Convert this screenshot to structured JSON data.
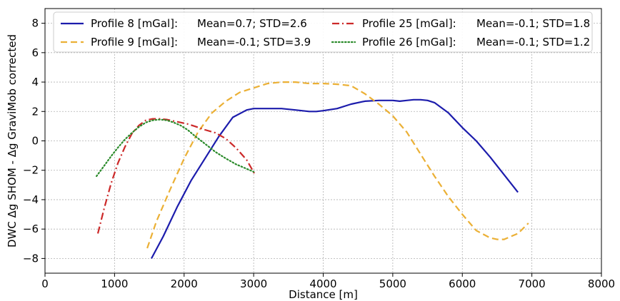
{
  "chart_data": {
    "type": "line",
    "xlabel": "Distance [m]",
    "ylabel": "DWC Δg SHOM - Δg GraviMob corrected",
    "xlim": [
      0,
      8000
    ],
    "ylim": [
      -9,
      9
    ],
    "xticks": [
      0,
      1000,
      2000,
      3000,
      4000,
      5000,
      6000,
      7000,
      8000
    ],
    "yticks": [
      -8,
      -6,
      -4,
      -2,
      0,
      2,
      4,
      6,
      8
    ],
    "grid": true,
    "legend_placement": "top",
    "series": [
      {
        "name": "Profile 8 [mGal]:",
        "stats": "Mean=0.7; STD=2.6",
        "color": "#1c1cac",
        "style": "solid",
        "x": [
          1530,
          1700,
          1900,
          2100,
          2300,
          2500,
          2700,
          2900,
          3000,
          3200,
          3400,
          3600,
          3800,
          3900,
          4000,
          4200,
          4400,
          4600,
          4800,
          5000,
          5100,
          5200,
          5300,
          5400,
          5500,
          5600,
          5800,
          6000,
          6200,
          6400,
          6600,
          6800
        ],
        "y": [
          -8.0,
          -6.5,
          -4.5,
          -2.7,
          -1.2,
          0.3,
          1.6,
          2.1,
          2.2,
          2.2,
          2.2,
          2.1,
          2.0,
          2.0,
          2.05,
          2.2,
          2.5,
          2.7,
          2.75,
          2.75,
          2.7,
          2.75,
          2.8,
          2.8,
          2.75,
          2.6,
          1.9,
          0.9,
          0.0,
          -1.1,
          -2.3,
          -3.5
        ]
      },
      {
        "name": "Profile 9 [mGal]:",
        "stats": "Mean=-0.1; STD=3.9",
        "color": "#ebb035",
        "style": "dashed",
        "x": [
          1470,
          1600,
          1800,
          2000,
          2200,
          2400,
          2600,
          2800,
          3000,
          3200,
          3400,
          3600,
          3800,
          4000,
          4200,
          4400,
          4600,
          4800,
          5000,
          5200,
          5400,
          5600,
          5800,
          6000,
          6200,
          6400,
          6500,
          6600,
          6800,
          6950
        ],
        "y": [
          -7.3,
          -5.5,
          -3.3,
          -1.2,
          0.6,
          1.9,
          2.7,
          3.3,
          3.6,
          3.9,
          4.0,
          4.0,
          3.9,
          3.9,
          3.85,
          3.75,
          3.2,
          2.5,
          1.7,
          0.6,
          -0.9,
          -2.4,
          -3.8,
          -5.0,
          -6.1,
          -6.6,
          -6.7,
          -6.7,
          -6.3,
          -5.6
        ]
      },
      {
        "name": "Profile 25 [mGal]:",
        "stats": "Mean=-0.1; STD=1.8",
        "color": "#cc2929",
        "style": "dashdot",
        "x": [
          760,
          850,
          950,
          1050,
          1150,
          1250,
          1350,
          1450,
          1550,
          1650,
          1750,
          1850,
          1950,
          2050,
          2150,
          2300,
          2450,
          2600,
          2750,
          2900,
          3020
        ],
        "y": [
          -6.3,
          -4.6,
          -2.9,
          -1.5,
          -0.4,
          0.5,
          1.05,
          1.4,
          1.5,
          1.5,
          1.45,
          1.35,
          1.25,
          1.15,
          1.0,
          0.75,
          0.55,
          0.15,
          -0.5,
          -1.3,
          -2.3
        ]
      },
      {
        "name": "Profile 26 [mGal]:",
        "stats": "Mean=-0.1; STD=1.2",
        "color": "#2a8a2a",
        "style": "dotted",
        "x": [
          740,
          850,
          950,
          1050,
          1150,
          1250,
          1350,
          1450,
          1550,
          1650,
          1750,
          1850,
          1950,
          2050,
          2150,
          2300,
          2450,
          2600,
          2750,
          2900,
          3000
        ],
        "y": [
          -2.4,
          -1.7,
          -1.05,
          -0.45,
          0.1,
          0.55,
          0.95,
          1.25,
          1.4,
          1.45,
          1.4,
          1.25,
          1.05,
          0.75,
          0.35,
          -0.2,
          -0.75,
          -1.2,
          -1.6,
          -1.9,
          -2.1
        ]
      }
    ]
  }
}
